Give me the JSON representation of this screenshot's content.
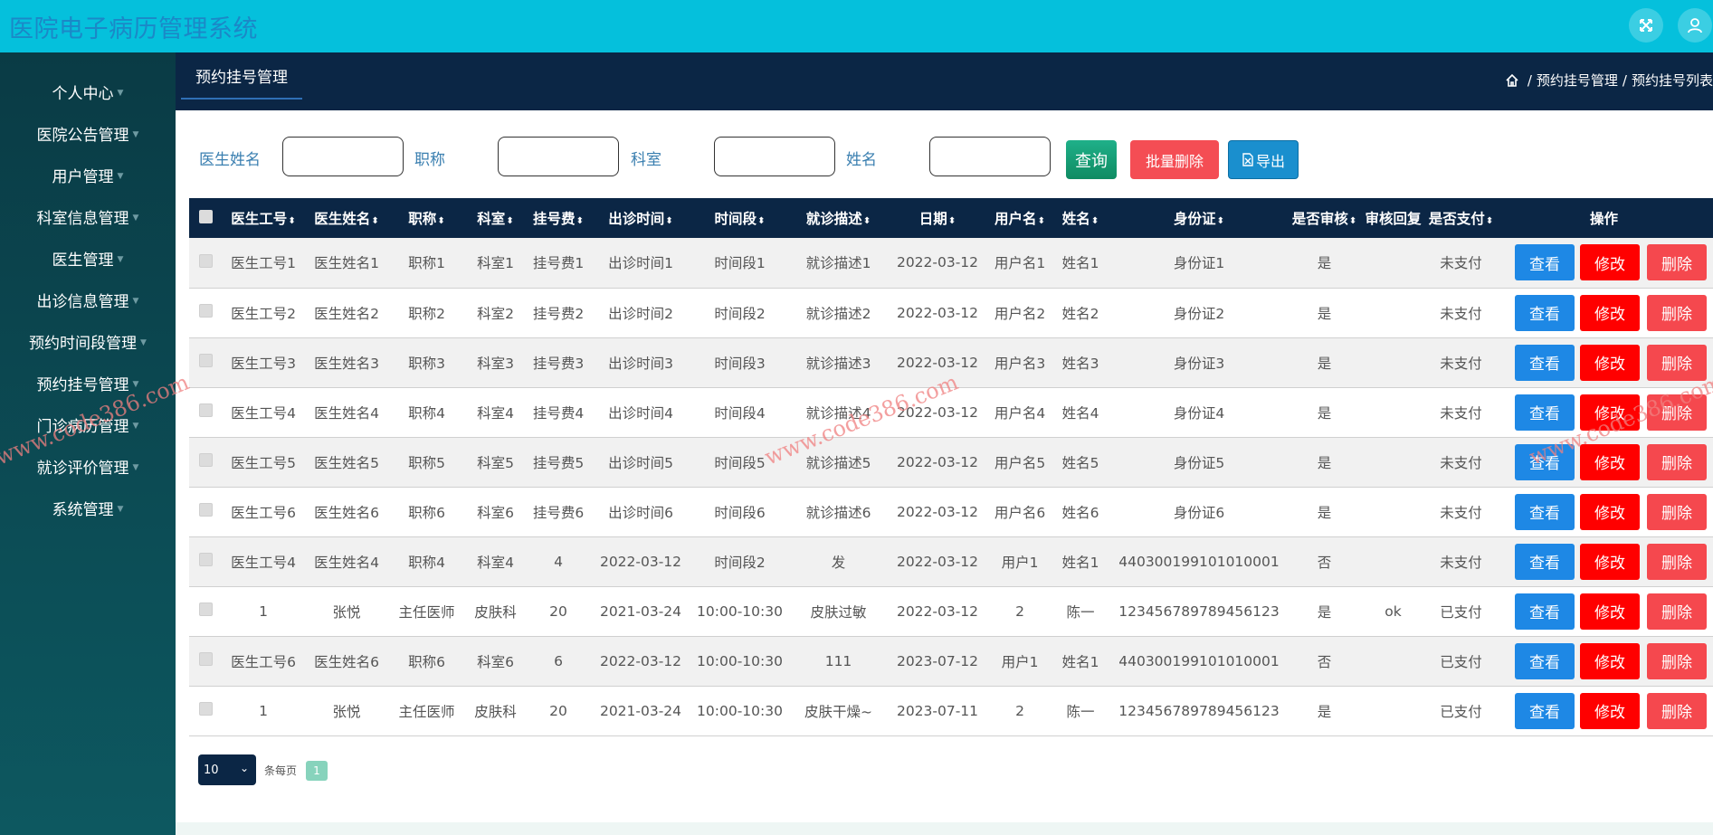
{
  "app": {
    "title": "医院电子病历管理系统"
  },
  "top_icons": [
    {
      "name": "fullscreen-icon"
    },
    {
      "name": "user-icon"
    }
  ],
  "sidebar": {
    "items": [
      {
        "label": "个人中心"
      },
      {
        "label": "医院公告管理"
      },
      {
        "label": "用户管理"
      },
      {
        "label": "科室信息管理"
      },
      {
        "label": "医生管理"
      },
      {
        "label": "出诊信息管理"
      },
      {
        "label": "预约时间段管理"
      },
      {
        "label": "预约挂号管理"
      },
      {
        "label": "门诊病历管理"
      },
      {
        "label": "就诊评价管理"
      },
      {
        "label": "系统管理"
      }
    ]
  },
  "header": {
    "tab_label": "预约挂号管理",
    "breadcrumb": [
      "预约挂号管理",
      "预约挂号列表"
    ],
    "breadcrumb_sep": "/"
  },
  "search": {
    "fields": [
      {
        "label": "医生姓名",
        "value": ""
      },
      {
        "label": "职称",
        "value": ""
      },
      {
        "label": "科室",
        "value": ""
      },
      {
        "label": "姓名",
        "value": ""
      }
    ],
    "query_label": "查询",
    "batch_delete_label": "批量删除",
    "export_label": "导出"
  },
  "table": {
    "columns": [
      "医生工号",
      "医生姓名",
      "职称",
      "科室",
      "挂号费",
      "出诊时间",
      "时间段",
      "就诊描述",
      "日期",
      "用户名",
      "姓名",
      "身份证",
      "是否审核",
      "审核回复",
      "是否支付",
      "操作"
    ],
    "sort_glyph": "⬍",
    "rows": [
      [
        "医生工号1",
        "医生姓名1",
        "职称1",
        "科室1",
        "挂号费1",
        "出诊时间1",
        "时间段1",
        "就诊描述1",
        "2022-03-12",
        "用户名1",
        "姓名1",
        "身份证1",
        "是",
        "",
        "未支付"
      ],
      [
        "医生工号2",
        "医生姓名2",
        "职称2",
        "科室2",
        "挂号费2",
        "出诊时间2",
        "时间段2",
        "就诊描述2",
        "2022-03-12",
        "用户名2",
        "姓名2",
        "身份证2",
        "是",
        "",
        "未支付"
      ],
      [
        "医生工号3",
        "医生姓名3",
        "职称3",
        "科室3",
        "挂号费3",
        "出诊时间3",
        "时间段3",
        "就诊描述3",
        "2022-03-12",
        "用户名3",
        "姓名3",
        "身份证3",
        "是",
        "",
        "未支付"
      ],
      [
        "医生工号4",
        "医生姓名4",
        "职称4",
        "科室4",
        "挂号费4",
        "出诊时间4",
        "时间段4",
        "就诊描述4",
        "2022-03-12",
        "用户名4",
        "姓名4",
        "身份证4",
        "是",
        "",
        "未支付"
      ],
      [
        "医生工号5",
        "医生姓名5",
        "职称5",
        "科室5",
        "挂号费5",
        "出诊时间5",
        "时间段5",
        "就诊描述5",
        "2022-03-12",
        "用户名5",
        "姓名5",
        "身份证5",
        "是",
        "",
        "未支付"
      ],
      [
        "医生工号6",
        "医生姓名6",
        "职称6",
        "科室6",
        "挂号费6",
        "出诊时间6",
        "时间段6",
        "就诊描述6",
        "2022-03-12",
        "用户名6",
        "姓名6",
        "身份证6",
        "是",
        "",
        "未支付"
      ],
      [
        "医生工号4",
        "医生姓名4",
        "职称4",
        "科室4",
        "4",
        "2022-03-12",
        "时间段2",
        "发",
        "2022-03-12",
        "用户1",
        "姓名1",
        "440300199101010001",
        "否",
        "",
        "未支付"
      ],
      [
        "1",
        "张悦",
        "主任医师",
        "皮肤科",
        "20",
        "2021-03-24",
        "10:00-10:30",
        "皮肤过敏",
        "2022-03-12",
        "2",
        "陈一",
        "123456789789456123",
        "是",
        "ok",
        "已支付"
      ],
      [
        "医生工号6",
        "医生姓名6",
        "职称6",
        "科室6",
        "6",
        "2022-03-12",
        "10:00-10:30",
        "111",
        "2023-07-12",
        "用户1",
        "姓名1",
        "440300199101010001",
        "否",
        "",
        "已支付"
      ],
      [
        "1",
        "张悦",
        "主任医师",
        "皮肤科",
        "20",
        "2021-03-24",
        "10:00-10:30",
        "皮肤干燥~",
        "2023-07-11",
        "2",
        "陈一",
        "123456789789456123",
        "是",
        "",
        "已支付"
      ]
    ],
    "actions": {
      "view": "查看",
      "edit": "修改",
      "delete": "删除"
    }
  },
  "pagination": {
    "page_size": "10",
    "per_page_label": "条每页",
    "current_page": "1"
  },
  "watermark": "www.code386.com",
  "colors": {
    "topbar": "#05c0dc",
    "sidebar": "#0a3b45",
    "header": "#0b2645",
    "primary": "#1e88e5",
    "danger": "#ff0000"
  }
}
